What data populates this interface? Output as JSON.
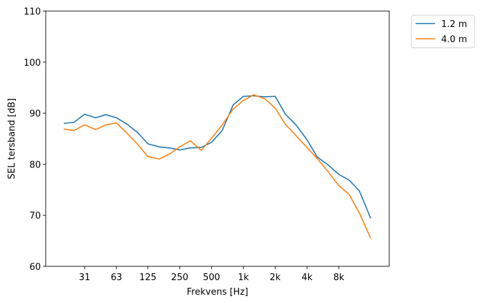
{
  "chart_data": {
    "type": "line",
    "title": "",
    "xlabel": "Frekvens [Hz]",
    "ylabel": "SEL tersband [dB]",
    "x_scale": "log",
    "x": [
      20,
      25,
      31.5,
      40,
      50,
      63,
      80,
      100,
      125,
      160,
      200,
      250,
      315,
      400,
      500,
      630,
      800,
      1000,
      1250,
      1600,
      2000,
      2500,
      3150,
      4000,
      5000,
      6300,
      8000,
      10000,
      12500,
      16000
    ],
    "x_ticks": [
      31.5,
      63,
      125,
      250,
      500,
      1000,
      2000,
      4000,
      8000
    ],
    "x_tick_labels": [
      "31",
      "63",
      "125",
      "250",
      "500",
      "1k",
      "2k",
      "4k",
      "8k"
    ],
    "xlim": [
      13.5,
      24000
    ],
    "ylim": [
      60,
      110
    ],
    "y_ticks": [
      60,
      70,
      80,
      90,
      100,
      110
    ],
    "grid": false,
    "legend_position": "outside-top-right",
    "series": [
      {
        "name": "1.2 m",
        "color": "#1f77b4",
        "values": [
          88.0,
          88.2,
          89.8,
          89.1,
          89.7,
          89.1,
          87.8,
          86.2,
          84.0,
          83.4,
          83.2,
          82.8,
          83.2,
          83.3,
          84.3,
          86.6,
          91.6,
          93.3,
          93.4,
          93.2,
          93.3,
          89.8,
          87.7,
          84.8,
          81.4,
          79.9,
          78.0,
          76.9,
          74.8,
          69.4
        ]
      },
      {
        "name": "4.0 m",
        "color": "#ff7f0e",
        "values": [
          86.9,
          86.6,
          87.7,
          86.8,
          87.7,
          88.1,
          86.0,
          83.9,
          81.5,
          81.0,
          82.0,
          83.4,
          84.6,
          82.7,
          85.1,
          87.7,
          90.8,
          92.5,
          93.6,
          92.8,
          91.0,
          87.8,
          85.6,
          83.3,
          81.1,
          78.6,
          75.8,
          74.1,
          70.5,
          65.5
        ]
      }
    ]
  }
}
